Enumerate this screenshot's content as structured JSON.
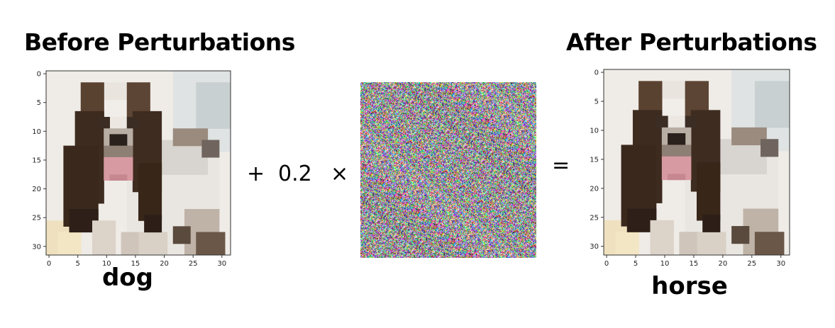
{
  "before": {
    "title": "Before Perturbations",
    "label": "dog",
    "x_ticks": [
      "0",
      "5",
      "10",
      "15",
      "20",
      "25",
      "30"
    ],
    "y_ticks": [
      "0",
      "5",
      "10",
      "15",
      "20",
      "25",
      "30"
    ]
  },
  "equation": {
    "plus": "+",
    "coefficient": "0.2",
    "times": "×",
    "equals": "="
  },
  "after": {
    "title": "After Perturbations",
    "label": "horse",
    "x_ticks": [
      "0",
      "5",
      "10",
      "15",
      "20",
      "25",
      "30"
    ],
    "y_ticks": [
      "0",
      "5",
      "10",
      "15",
      "20",
      "25",
      "30"
    ]
  }
}
